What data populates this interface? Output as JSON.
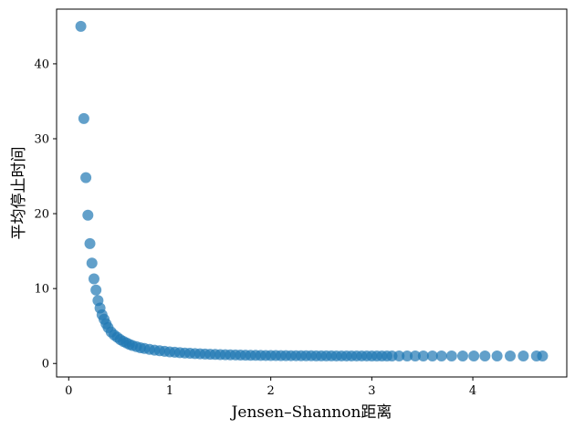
{
  "chart_data": {
    "type": "scatter",
    "title": "",
    "xlabel": "Jensen–Shannon距离",
    "ylabel": "平均停止时间",
    "xlim": [
      -0.12,
      4.93
    ],
    "ylim": [
      -1.8,
      47.3
    ],
    "xticks": [
      0,
      1,
      2,
      3,
      4
    ],
    "yticks": [
      0,
      10,
      20,
      30,
      40
    ],
    "grid": false,
    "legend": "none",
    "marker_color": "#1f77b4",
    "marker_alpha": 0.7,
    "series": [
      {
        "x": [
          0.12,
          0.15,
          0.17,
          0.19,
          0.21,
          0.23,
          0.25,
          0.27,
          0.29,
          0.31,
          0.33,
          0.35,
          0.37,
          0.39,
          0.42,
          0.45,
          0.48,
          0.51,
          0.54,
          0.57,
          0.6,
          0.63,
          0.67,
          0.71,
          0.75,
          0.8,
          0.85,
          0.9,
          0.95,
          1.0,
          1.05,
          1.1,
          1.15,
          1.2,
          1.25,
          1.3,
          1.35,
          1.4,
          1.45,
          1.5,
          1.55,
          1.6,
          1.65,
          1.7,
          1.75,
          1.8,
          1.85,
          1.9,
          1.95,
          2.0,
          2.05,
          2.1,
          2.15,
          2.2,
          2.25,
          2.3,
          2.35,
          2.4,
          2.45,
          2.5,
          2.55,
          2.6,
          2.65,
          2.7,
          2.75,
          2.8,
          2.85,
          2.9,
          2.95,
          3.0,
          3.05,
          3.1,
          3.15,
          3.2,
          3.27,
          3.35,
          3.43,
          3.51,
          3.6,
          3.69,
          3.79,
          3.9,
          4.01,
          4.12,
          4.24,
          4.37,
          4.5,
          4.63,
          4.69
        ],
        "y": [
          45.0,
          32.7,
          24.8,
          19.8,
          16.0,
          13.4,
          11.3,
          9.8,
          8.4,
          7.4,
          6.5,
          5.9,
          5.3,
          4.8,
          4.2,
          3.8,
          3.5,
          3.2,
          2.95,
          2.75,
          2.55,
          2.4,
          2.25,
          2.1,
          2.0,
          1.88,
          1.78,
          1.7,
          1.62,
          1.55,
          1.5,
          1.45,
          1.4,
          1.36,
          1.32,
          1.29,
          1.26,
          1.23,
          1.21,
          1.19,
          1.17,
          1.15,
          1.14,
          1.12,
          1.11,
          1.1,
          1.09,
          1.08,
          1.07,
          1.06,
          1.06,
          1.05,
          1.05,
          1.04,
          1.04,
          1.03,
          1.03,
          1.03,
          1.02,
          1.02,
          1.02,
          1.02,
          1.01,
          1.01,
          1.01,
          1.01,
          1.01,
          1.01,
          1.01,
          1.0,
          1.0,
          1.0,
          1.0,
          1.0,
          1.0,
          1.0,
          1.0,
          1.0,
          1.0,
          1.0,
          1.0,
          1.0,
          1.0,
          1.0,
          1.0,
          1.0,
          1.0,
          1.0,
          1.0
        ]
      }
    ]
  }
}
